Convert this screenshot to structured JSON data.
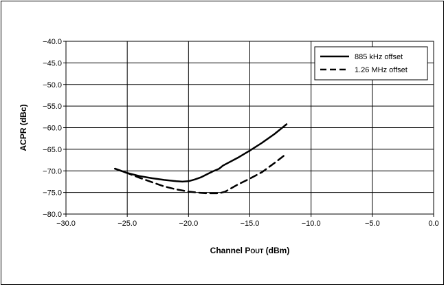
{
  "chart_data": {
    "type": "line",
    "xlabel": "Channel P",
    "xlabel_sub": "OUT",
    "xlabel_unit": " (dBm)",
    "ylabel": "ACPR (dBc)",
    "xlim": [
      -30,
      0
    ],
    "ylim": [
      -80,
      -40
    ],
    "x_ticks": [
      -30,
      -25,
      -20,
      -15,
      -10,
      -5,
      0
    ],
    "x_tick_labels": [
      "−30.0",
      "−25.0",
      "−20.0",
      "−15.0",
      "−10.0",
      "−5.0",
      "0.0"
    ],
    "y_ticks": [
      -40,
      -45,
      -50,
      -55,
      -60,
      -65,
      -70,
      -75,
      -80
    ],
    "y_tick_labels": [
      "−40.0",
      "−45.0",
      "−50.0",
      "−55.0",
      "−60.0",
      "−65.0",
      "−70.0",
      "−75.0",
      "−80.0"
    ],
    "grid": true,
    "legend_position": "top-right",
    "series": [
      {
        "name": "885 kHz offset",
        "style": "solid",
        "x": [
          -26,
          -25,
          -24,
          -23,
          -22,
          -21,
          -20.5,
          -20,
          -19.5,
          -19,
          -18.5,
          -18,
          -17.5,
          -17.2,
          -17,
          -16,
          -15,
          -14,
          -13,
          -12
        ],
        "y": [
          -69.5,
          -70.5,
          -71.2,
          -71.7,
          -72.1,
          -72.4,
          -72.5,
          -72.4,
          -72.0,
          -71.5,
          -70.8,
          -70.1,
          -69.5,
          -68.8,
          -68.5,
          -67.0,
          -65.3,
          -63.5,
          -61.5,
          -59.2
        ]
      },
      {
        "name": "1.26 MHz offset",
        "style": "dashed",
        "x": [
          -26,
          -25,
          -24,
          -23,
          -22,
          -21,
          -20,
          -19,
          -18.5,
          -18,
          -17.5,
          -17,
          -16,
          -15,
          -14,
          -13,
          -12
        ],
        "y": [
          -69.5,
          -70.5,
          -71.6,
          -72.6,
          -73.6,
          -74.3,
          -74.8,
          -75.1,
          -75.2,
          -75.2,
          -75.2,
          -74.8,
          -73.2,
          -71.8,
          -70.3,
          -68.2,
          -66.0
        ]
      }
    ]
  }
}
